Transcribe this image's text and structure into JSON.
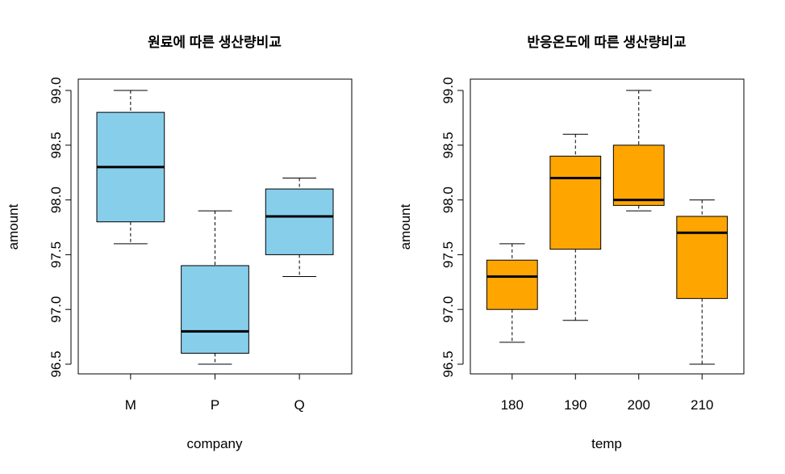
{
  "chart_data": [
    {
      "type": "boxplot",
      "title": "원료에 따른 생산량비교",
      "xlabel": "company",
      "ylabel": "amount",
      "ylim": [
        96.5,
        99.0
      ],
      "yticks": [
        "96.5",
        "97.0",
        "97.5",
        "98.0",
        "98.5",
        "99.0"
      ],
      "categories": [
        "M",
        "P",
        "Q"
      ],
      "fill_color": "#87CEEB",
      "boxes": [
        {
          "min": 97.6,
          "q1": 97.8,
          "median": 98.3,
          "q3": 98.8,
          "max": 99.0
        },
        {
          "min": 96.5,
          "q1": 96.6,
          "median": 96.8,
          "q3": 97.4,
          "max": 97.9
        },
        {
          "min": 97.3,
          "q1": 97.5,
          "median": 97.85,
          "q3": 98.1,
          "max": 98.2
        }
      ]
    },
    {
      "type": "boxplot",
      "title": "반응온도에 따른 생산량비교",
      "xlabel": "temp",
      "ylabel": "amount",
      "ylim": [
        96.5,
        99.0
      ],
      "yticks": [
        "96.5",
        "97.0",
        "97.5",
        "98.0",
        "98.5",
        "99.0"
      ],
      "categories": [
        "180",
        "190",
        "200",
        "210"
      ],
      "fill_color": "#FFA500",
      "boxes": [
        {
          "min": 96.7,
          "q1": 97.0,
          "median": 97.3,
          "q3": 97.45,
          "max": 97.6
        },
        {
          "min": 96.9,
          "q1": 97.55,
          "median": 98.2,
          "q3": 98.4,
          "max": 98.6
        },
        {
          "min": 97.9,
          "q1": 97.95,
          "median": 98.0,
          "q3": 98.5,
          "max": 99.0
        },
        {
          "min": 96.5,
          "q1": 97.1,
          "median": 97.7,
          "q3": 97.85,
          "max": 98.0
        }
      ]
    }
  ]
}
